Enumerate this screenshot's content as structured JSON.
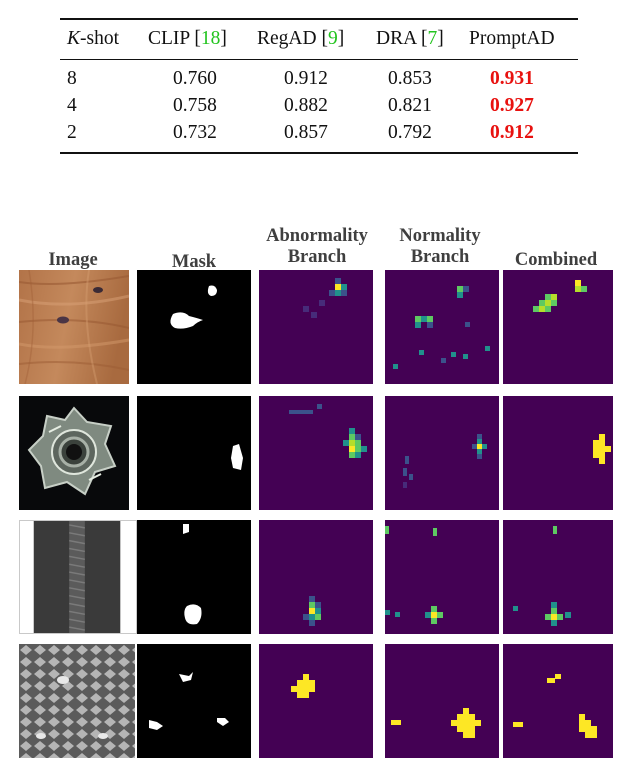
{
  "table": {
    "headers": {
      "kshot_var": "K",
      "kshot_suffix": "-shot",
      "clip": "CLIP",
      "clip_ref": "18",
      "regad": "RegAD",
      "regad_ref": "9",
      "dra": "DRA",
      "dra_ref": "7",
      "promptad": "PromptAD"
    },
    "rows": [
      {
        "k": "8",
        "clip": "0.760",
        "regad": "0.912",
        "dra": "0.853",
        "promptad": "0.931"
      },
      {
        "k": "4",
        "clip": "0.758",
        "regad": "0.882",
        "dra": "0.821",
        "promptad": "0.927"
      },
      {
        "k": "2",
        "clip": "0.732",
        "regad": "0.857",
        "dra": "0.792",
        "promptad": "0.912"
      }
    ],
    "colors": {
      "citation": "#22c41e",
      "best": "#e8110f"
    }
  },
  "figure": {
    "columns": {
      "image": "Image",
      "mask": "Mask",
      "abnormality_1": "Abnormality",
      "abnormality_2": "Branch",
      "normality_1": "Normality",
      "normality_2": "Branch",
      "combined": "Combined"
    },
    "rows": [
      "wood",
      "metal nut",
      "zipper",
      "grid"
    ],
    "colors": {
      "heatmap_bg": "#440154",
      "hot": "#fde725",
      "warm": "#5ec962",
      "mid": "#21918c",
      "cool": "#3b528b"
    }
  }
}
